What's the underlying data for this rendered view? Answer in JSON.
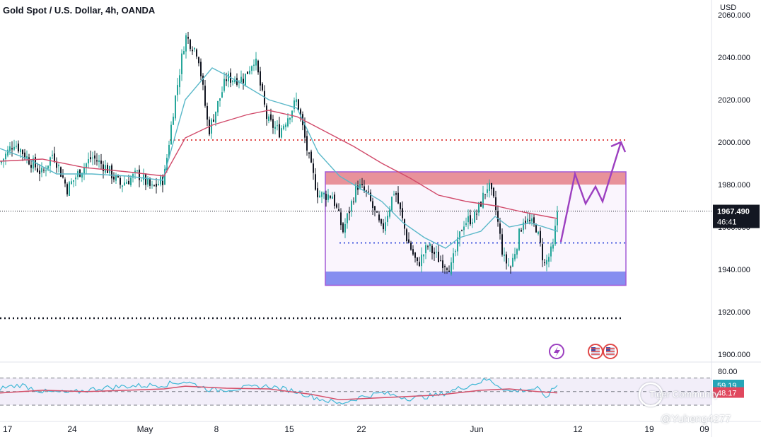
{
  "header": {
    "symbol_title": "Gold Spot / U.S. Dollar, 4h, OANDA",
    "currency": "USD"
  },
  "price_axis": {
    "ticks": [
      "2060.000",
      "2040.000",
      "2020.000",
      "2000.000",
      "1980.000",
      "1960.000",
      "1940.000",
      "1920.000",
      "1900.000"
    ],
    "last_price_label": "1967.490",
    "countdown": "46:41"
  },
  "rsi_axis": {
    "top_label": "80.00",
    "rsi_value": "59.19",
    "rsi_ma_value": "48.17"
  },
  "time_axis": {
    "ticks": [
      "17",
      "24",
      "May",
      "8",
      "15",
      "22",
      "Jun",
      "12",
      "19",
      "09"
    ]
  },
  "watermark": {
    "brand": "Tiger Community",
    "handle": "@Yuheng4277"
  },
  "colors": {
    "bull": "#26a69a",
    "bear": "#131722",
    "ema_fast": "#5ab8c9",
    "ema_slow": "#d14a6a",
    "resistance_zone": "#e57373",
    "support_zone": "#6e7ff0",
    "range_box": "#a35bd6",
    "projection": "#9c3fc0",
    "rsi_line": "#42b8d6",
    "rsi_ma": "#d4506a",
    "last_price_bg": "#131722",
    "rsi_badge": "#26a5b7",
    "rsi_ma_badge": "#e0485e"
  },
  "chart_data": {
    "type": "candlestick",
    "title": "Gold Spot / U.S. Dollar, 4h, OANDA",
    "ylim": [
      1895,
      2063
    ],
    "y_ticks": [
      2040,
      2020,
      2000,
      1980,
      1960,
      1940,
      1920,
      1900
    ],
    "x_ticks": [
      "17",
      "24",
      "May",
      "8",
      "15",
      "22",
      "Jun",
      "12",
      "19",
      "09"
    ],
    "price_path": [
      [
        0,
        1990
      ],
      [
        20,
        2000
      ],
      [
        40,
        1992
      ],
      [
        60,
        1985
      ],
      [
        75,
        1995
      ],
      [
        95,
        1978
      ],
      [
        110,
        1985
      ],
      [
        130,
        1993
      ],
      [
        150,
        1988
      ],
      [
        170,
        1980
      ],
      [
        195,
        1985
      ],
      [
        215,
        1978
      ],
      [
        232,
        1983
      ],
      [
        245,
        2015
      ],
      [
        262,
        2050
      ],
      [
        280,
        2042
      ],
      [
        295,
        2005
      ],
      [
        320,
        2030
      ],
      [
        345,
        2030
      ],
      [
        360,
        2040
      ],
      [
        378,
        2010
      ],
      [
        395,
        2005
      ],
      [
        420,
        2020
      ],
      [
        438,
        1990
      ],
      [
        450,
        1975
      ],
      [
        470,
        1975
      ],
      [
        485,
        1958
      ],
      [
        505,
        1980
      ],
      [
        520,
        1975
      ],
      [
        540,
        1958
      ],
      [
        558,
        1978
      ],
      [
        575,
        1955
      ],
      [
        590,
        1942
      ],
      [
        605,
        1951
      ],
      [
        620,
        1945
      ],
      [
        638,
        1941
      ],
      [
        655,
        1962
      ],
      [
        672,
        1965
      ],
      [
        690,
        1980
      ],
      [
        700,
        1970
      ],
      [
        712,
        1945
      ],
      [
        722,
        1941
      ],
      [
        740,
        1964
      ],
      [
        758,
        1960
      ],
      [
        770,
        1942
      ],
      [
        782,
        1950
      ],
      [
        788,
        1967.49
      ]
    ],
    "ema_fast": [
      [
        0,
        1997
      ],
      [
        40,
        1992
      ],
      [
        80,
        1985
      ],
      [
        130,
        1985
      ],
      [
        180,
        1984
      ],
      [
        230,
        1982
      ],
      [
        262,
        2020
      ],
      [
        300,
        2035
      ],
      [
        340,
        2028
      ],
      [
        380,
        2020
      ],
      [
        420,
        2016
      ],
      [
        450,
        1995
      ],
      [
        480,
        1984
      ],
      [
        510,
        1978
      ],
      [
        540,
        1972
      ],
      [
        570,
        1962
      ],
      [
        600,
        1955
      ],
      [
        630,
        1950
      ],
      [
        650,
        1955
      ],
      [
        680,
        1958
      ],
      [
        700,
        1965
      ],
      [
        720,
        1960
      ],
      [
        750,
        1962
      ],
      [
        788,
        1958
      ]
    ],
    "ema_slow": [
      [
        0,
        1991
      ],
      [
        60,
        1992
      ],
      [
        120,
        1988
      ],
      [
        180,
        1986
      ],
      [
        232,
        1984
      ],
      [
        262,
        2002
      ],
      [
        300,
        2008
      ],
      [
        350,
        2013
      ],
      [
        380,
        2015
      ],
      [
        420,
        2012
      ],
      [
        460,
        2005
      ],
      [
        500,
        1998
      ],
      [
        540,
        1990
      ],
      [
        580,
        1983
      ],
      [
        620,
        1975
      ],
      [
        660,
        1972
      ],
      [
        700,
        1970
      ],
      [
        740,
        1967
      ],
      [
        788,
        1964
      ]
    ],
    "resistance_zone": [
      1980,
      1986
    ],
    "support_zone": [
      1932.5,
      1939
    ],
    "range_box": [
      1932.5,
      1986
    ],
    "target_level": 2001,
    "mid_level": 1952.5,
    "low_level": 1917,
    "last_price": 1967.49,
    "projection_path": [
      [
        793,
        1953
      ],
      [
        813,
        1985
      ],
      [
        828,
        1971
      ],
      [
        842,
        1979
      ],
      [
        852,
        1972
      ],
      [
        878,
        2000
      ]
    ],
    "rsi": {
      "range": [
        15,
        85
      ],
      "upper_band": 70,
      "mid_band": 50,
      "lower_band": 30,
      "rsi_value": 59.19,
      "rsi_ma_value": 48.17,
      "rsi_path": [
        [
          0,
          55
        ],
        [
          30,
          60
        ],
        [
          60,
          50
        ],
        [
          100,
          48
        ],
        [
          140,
          55
        ],
        [
          180,
          58
        ],
        [
          230,
          60
        ],
        [
          262,
          65
        ],
        [
          300,
          52
        ],
        [
          340,
          55
        ],
        [
          380,
          58
        ],
        [
          420,
          50
        ],
        [
          450,
          40
        ],
        [
          480,
          32
        ],
        [
          510,
          42
        ],
        [
          540,
          48
        ],
        [
          580,
          40
        ],
        [
          620,
          45
        ],
        [
          650,
          55
        ],
        [
          690,
          68
        ],
        [
          720,
          50
        ],
        [
          760,
          55
        ],
        [
          770,
          40
        ],
        [
          788,
          59.19
        ]
      ],
      "ma_path": [
        [
          0,
          48
        ],
        [
          60,
          52
        ],
        [
          120,
          50
        ],
        [
          180,
          52
        ],
        [
          232,
          54
        ],
        [
          262,
          58
        ],
        [
          320,
          55
        ],
        [
          380,
          54
        ],
        [
          440,
          46
        ],
        [
          480,
          38
        ],
        [
          520,
          40
        ],
        [
          560,
          42
        ],
        [
          620,
          45
        ],
        [
          680,
          52
        ],
        [
          720,
          54
        ],
        [
          760,
          50
        ],
        [
          788,
          48.17
        ]
      ]
    },
    "annotations": [
      {
        "kind": "icon",
        "name": "dividend-icon"
      },
      {
        "kind": "icon",
        "name": "us-flag-icon"
      },
      {
        "kind": "icon",
        "name": "us-flag-icon"
      }
    ]
  }
}
